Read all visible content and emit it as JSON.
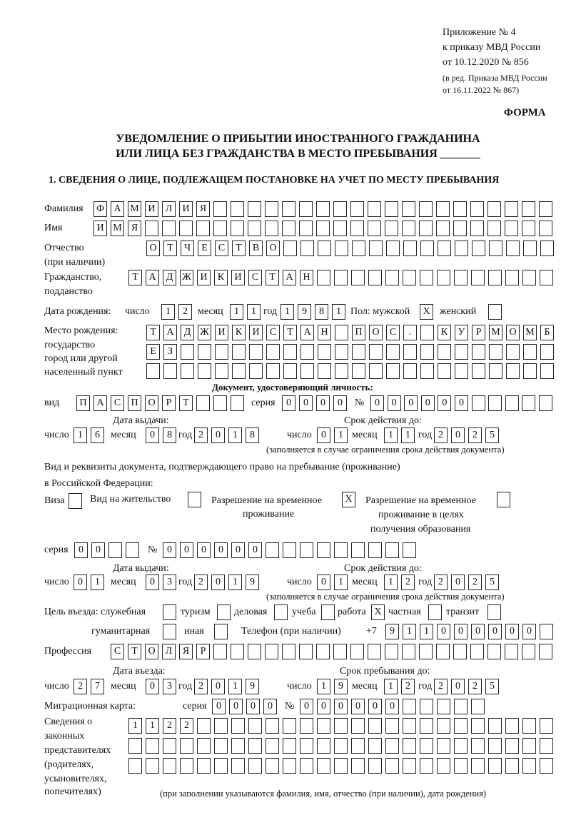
{
  "header": {
    "line1": "Приложение № 4",
    "line2": "к приказу МВД России",
    "line3": "от 10.12.2020 № 856",
    "line4": "(в ред. Приказа МВД России",
    "line5": "от 16.11.2022 № 867)",
    "form_label": "ФОРМА",
    "title1": "УВЕДОМЛЕНИЕ О ПРИБЫТИИ ИНОСТРАННОГО ГРАЖДАНИНА",
    "title2": "ИЛИ ЛИЦА БЕЗ ГРАЖДАНСТВА В МЕСТО ПРЕБЫВАНИЯ _______"
  },
  "section1": {
    "heading": "1. СВЕДЕНИЯ О ЛИЦЕ, ПОДЛЕЖАЩЕМ ПОСТАНОВКЕ НА УЧЕТ ПО МЕСТУ ПРЕБЫВАНИЯ",
    "surname": {
      "label": "Фамилия",
      "value": "ФАМИЛИЯ"
    },
    "name": {
      "label": "Имя",
      "value": "ИМЯ"
    },
    "patronymic": {
      "label": "Отчество",
      "label2": "(при наличии)",
      "value": "ОТЧЕСТВО"
    },
    "citizenship": {
      "label": "Гражданство,",
      "label2": "подданство",
      "value": "ТАДЖИКИСТАН"
    },
    "birth_date": {
      "label": "Дата рождения:",
      "day_label": "число",
      "day": "12",
      "month_label": "месяц",
      "month": "11",
      "year_label": "год",
      "year": "1981"
    },
    "sex": {
      "label": "Пол: мужской",
      "male": "X",
      "female_label": "женский",
      "female": ""
    },
    "birth_place": {
      "label1": "Место рождения:",
      "label2": "государство",
      "label3": "город или другой",
      "label4": "населенный пункт",
      "row1": "ТАДЖИКИСТАН ПОС. КУРМОМБ",
      "row2": "ЕЗ",
      "row3": ""
    },
    "id_doc": {
      "heading": "Документ, удостоверяющий личность:",
      "kind_label": "вид",
      "kind": "ПАСПОРТ",
      "series_label": "серия",
      "series": "0000",
      "number_label": "№",
      "number": "000000",
      "issue_label": "Дата выдачи:",
      "issue_day": "16",
      "issue_month": "08",
      "issue_year": "2018",
      "valid_label": "Срок действия до:",
      "valid_day": "01",
      "valid_month": "11",
      "valid_year": "2025",
      "note": "(заполняется в случае ограничения срока действия документа)"
    },
    "stay_doc": {
      "label1": "Вид и реквизиты документа, подтверждающего право на пребывание (проживание)",
      "label2": "в Российской Федерации:",
      "visa_label": "Виза",
      "visa": "",
      "residence_label": "Вид на жительство",
      "residence": "",
      "temp_label1": "Разрешение на временное",
      "temp_label2": "проживание",
      "temp": "X",
      "edu_label1": "Разрешение на временное",
      "edu_label2": "проживание в целях",
      "edu_label3": "получения образования",
      "edu": "",
      "series_label": "серия",
      "series": "00",
      "number_label": "№",
      "number": "000000",
      "issue_label": "Дата выдачи:",
      "issue_day": "01",
      "issue_month": "03",
      "issue_year": "2019",
      "valid_label": "Срок действия до:",
      "valid_day": "01",
      "valid_month": "12",
      "valid_year": "2025",
      "note": "(заполняется в случае ограничения срока действия документа)"
    },
    "purpose": {
      "label": "Цель въезда: служебная",
      "official": "",
      "tourism_label": "туризм",
      "tourism": "",
      "business_label": "деловая",
      "business": "",
      "study_label": "учеба",
      "study": "",
      "work_label": "работа",
      "work": "X",
      "private_label": "частная",
      "private": "",
      "transit_label": "транзит",
      "transit": "",
      "humanitarian_label": "гуманитарная",
      "humanitarian": "",
      "other_label": "иная",
      "other": ""
    },
    "phone": {
      "label": "Телефон (при наличии)",
      "prefix": "+7",
      "value": "911000000"
    },
    "profession": {
      "label": "Профессия",
      "value": "СТОЛЯР"
    },
    "entry": {
      "label": "Дата въезда:",
      "day": "27",
      "month": "03",
      "year": "2019",
      "stay_label": "Срок пребывания до:",
      "stay_day": "19",
      "stay_month": "12",
      "stay_year": "2025"
    },
    "migration_card": {
      "label": "Миграционная карта:",
      "series_label": "серия",
      "series": "0000",
      "number_label": "№",
      "number": "000000"
    },
    "representatives": {
      "label1": "Сведения о",
      "label2": "законных",
      "label3": "представителях",
      "label4": "(родителях,",
      "label5": "усыновителях,",
      "label6": "попечителях)",
      "row1": "1122",
      "row2": "",
      "row3": "",
      "note": "(при заполнении указываются фамилия, имя, отчество (при наличии), дата рождения)"
    },
    "day_label": "число",
    "month_label": "месяц",
    "year_label": "год"
  }
}
